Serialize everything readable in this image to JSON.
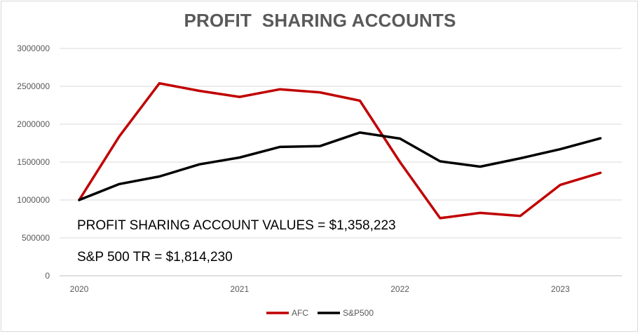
{
  "colors": {
    "afc": "#c00000",
    "sp500": "#000000",
    "grid": "#d9d9d9",
    "text": "#595959"
  },
  "annotations": {
    "line1": "PROFIT SHARING ACCOUNT VALUES = $1,358,223",
    "line2": "S&P 500 TR = $1,814,230"
  },
  "chart_data": {
    "type": "line",
    "title": "PROFIT  SHARING ACCOUNTS",
    "xlabel": "",
    "ylabel": "",
    "ylim": [
      0,
      3000000
    ],
    "yticks": [
      0,
      500000,
      1000000,
      1500000,
      2000000,
      2500000,
      3000000
    ],
    "x_tick_labels": [
      {
        "label": "2020",
        "index": 0
      },
      {
        "label": "2021",
        "index": 4
      },
      {
        "label": "2022",
        "index": 8
      },
      {
        "label": "2023",
        "index": 12
      }
    ],
    "grid": true,
    "legend_position": "bottom",
    "series": [
      {
        "name": "AFC",
        "values": [
          1000000,
          1840000,
          2540000,
          2440000,
          2360000,
          2460000,
          2420000,
          2310000,
          1500000,
          760000,
          830000,
          790000,
          1200000,
          1358223
        ]
      },
      {
        "name": "S&P500",
        "values": [
          1000000,
          1210000,
          1310000,
          1470000,
          1560000,
          1700000,
          1710000,
          1890000,
          1810000,
          1510000,
          1440000,
          1550000,
          1670000,
          1814230
        ]
      }
    ]
  }
}
